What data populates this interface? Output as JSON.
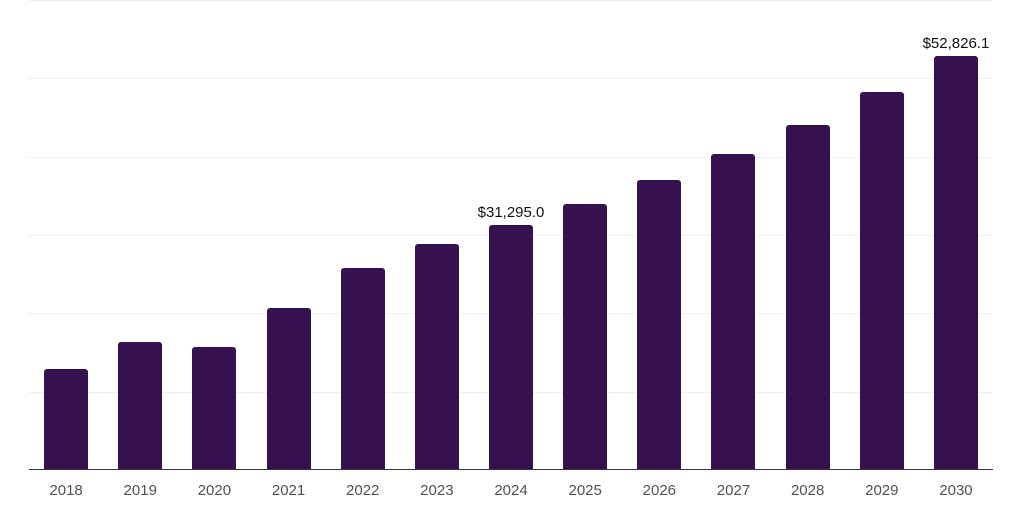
{
  "chart_data": {
    "type": "bar",
    "title": "",
    "xlabel": "",
    "ylabel": "",
    "categories": [
      "2018",
      "2019",
      "2020",
      "2021",
      "2022",
      "2023",
      "2024",
      "2025",
      "2026",
      "2027",
      "2028",
      "2029",
      "2030"
    ],
    "values": [
      12900,
      16400,
      15700,
      20700,
      25800,
      28800,
      31295.0,
      34000,
      37000,
      40400,
      44100,
      48200,
      52826.1
    ],
    "data_labels": [
      "",
      "",
      "",
      "",
      "",
      "",
      "$31,295.0",
      "",
      "",
      "",
      "",
      "",
      "$52,826.1"
    ],
    "ylim": [
      0,
      60000
    ],
    "gridline_interval": 10000,
    "grid": "horizontal-only",
    "legend": false,
    "y_axis_labels_visible": false,
    "bar_color": "#35114F",
    "gridline_color": "#f0f0f0",
    "axis_line_color": "#383838",
    "tick_label_color": "#525252",
    "data_label_color": "#111111",
    "background_color": "#ffffff"
  }
}
